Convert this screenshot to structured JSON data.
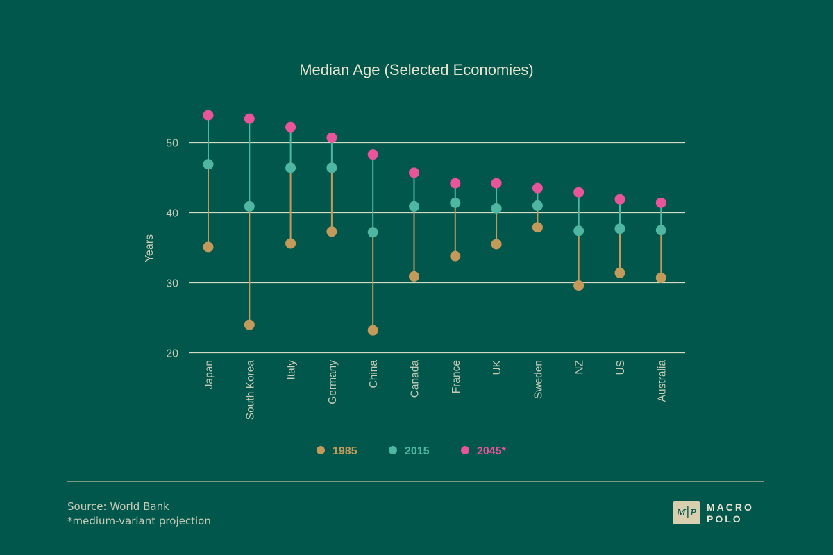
{
  "chart_data": {
    "type": "scatter",
    "title": "Median Age (Selected Economies)",
    "ylabel": "Years",
    "xlabel": "",
    "ylim": [
      20,
      55
    ],
    "yticks": [
      20,
      30,
      40,
      50
    ],
    "grid": true,
    "legend_position": "bottom-center",
    "categories": [
      "Japan",
      "South Korea",
      "Italy",
      "Germany",
      "China",
      "Canada",
      "France",
      "UK",
      "Sweden",
      "NZ",
      "US",
      "Australia"
    ],
    "series": [
      {
        "name": "1985",
        "color": "#c49a5a",
        "values": [
          35.1,
          24.0,
          35.6,
          37.3,
          23.2,
          30.9,
          33.8,
          35.5,
          37.9,
          29.6,
          31.4,
          30.7
        ]
      },
      {
        "name": "2015",
        "color": "#4fb7a1",
        "values": [
          46.9,
          40.9,
          46.4,
          46.4,
          37.2,
          40.9,
          41.4,
          40.6,
          41.0,
          37.4,
          37.7,
          37.5
        ]
      },
      {
        "name": "2045*",
        "color": "#e8559a",
        "values": [
          53.9,
          53.4,
          52.2,
          50.7,
          48.3,
          45.7,
          44.2,
          44.2,
          43.5,
          42.9,
          41.9,
          41.4
        ]
      }
    ]
  },
  "footer": {
    "source": "Source: World Bank",
    "note": "*medium-variant projection"
  },
  "logo": {
    "glyph": "ᴍ|ᴘ",
    "line1": "MACRO",
    "line2": "POLO"
  },
  "colors": {
    "background": "#02574c",
    "axis_text": "#c8cbb6",
    "title_text": "#e8e4cf",
    "gridline": "#d6d9c4"
  }
}
